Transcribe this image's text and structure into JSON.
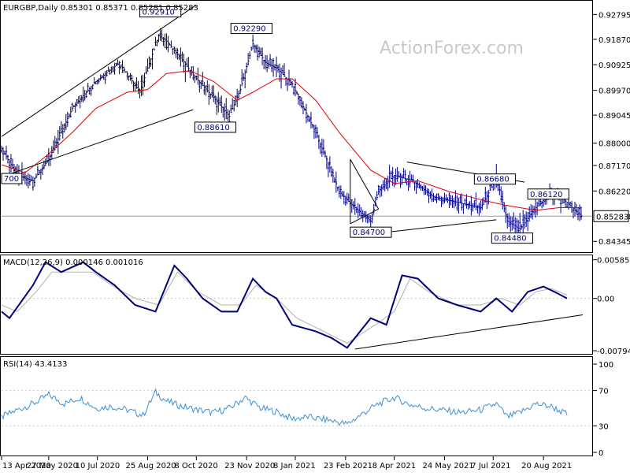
{
  "chart_data": [
    {
      "panel": "price",
      "type": "candlestick",
      "header": "EURGBP,Daily  0.85301 0.85371 0.85281 0.85283",
      "watermark": "ActionForex.com",
      "ylim": [
        0.84,
        0.931
      ],
      "yticks": [
        0.92795,
        0.9187,
        0.90925,
        0.8997,
        0.89045,
        0.88,
        0.8717,
        0.8622,
        0.85283,
        0.84345
      ],
      "ytick_labels": [
        "0.92795",
        "0.91870",
        "0.90925",
        "0.89970",
        "0.89045",
        "0.88000",
        "0.87170",
        "0.86220",
        "0.85283",
        "0.84345"
      ],
      "current_price": 0.85283,
      "current_price_label": "0.85283",
      "x_dates": [
        "13 Apr 2020",
        "27 May 2020",
        "10 Jul 2020",
        "25 Aug 2020",
        "8 Oct 2020",
        "23 Nov 2020",
        "8 Jan 2021",
        "23 Feb 2021",
        "8 Apr 2021",
        "24 May 2021",
        "7 Jul 2021",
        "20 Aug 2021"
      ],
      "x_date_index": [
        0,
        30,
        61,
        93,
        124,
        156,
        187,
        219,
        250,
        282,
        313,
        345
      ],
      "n_bars": 370,
      "close_path": [
        [
          0,
          0.878
        ],
        [
          10,
          0.868
        ],
        [
          20,
          0.866
        ],
        [
          30,
          0.874
        ],
        [
          45,
          0.893
        ],
        [
          60,
          0.903
        ],
        [
          75,
          0.91
        ],
        [
          88,
          0.899
        ],
        [
          93,
          0.908
        ],
        [
          100,
          0.92
        ],
        [
          105,
          0.918
        ],
        [
          115,
          0.911
        ],
        [
          124,
          0.904
        ],
        [
          135,
          0.897
        ],
        [
          145,
          0.89
        ],
        [
          152,
          0.9
        ],
        [
          160,
          0.917
        ],
        [
          168,
          0.91
        ],
        [
          175,
          0.908
        ],
        [
          185,
          0.902
        ],
        [
          200,
          0.884
        ],
        [
          215,
          0.862
        ],
        [
          225,
          0.856
        ],
        [
          235,
          0.851
        ],
        [
          240,
          0.862
        ],
        [
          250,
          0.868
        ],
        [
          262,
          0.866
        ],
        [
          275,
          0.86
        ],
        [
          290,
          0.858
        ],
        [
          305,
          0.856
        ],
        [
          315,
          0.867
        ],
        [
          322,
          0.851
        ],
        [
          330,
          0.848
        ],
        [
          340,
          0.856
        ],
        [
          350,
          0.861
        ],
        [
          358,
          0.859
        ],
        [
          365,
          0.855
        ],
        [
          369,
          0.853
        ]
      ],
      "ma_path": [
        [
          0,
          0.872
        ],
        [
          15,
          0.869
        ],
        [
          30,
          0.876
        ],
        [
          45,
          0.884
        ],
        [
          60,
          0.893
        ],
        [
          80,
          0.899
        ],
        [
          93,
          0.9
        ],
        [
          105,
          0.906
        ],
        [
          120,
          0.907
        ],
        [
          135,
          0.903
        ],
        [
          150,
          0.896
        ],
        [
          160,
          0.899
        ],
        [
          175,
          0.904
        ],
        [
          185,
          0.904
        ],
        [
          200,
          0.896
        ],
        [
          215,
          0.884
        ],
        [
          235,
          0.87
        ],
        [
          250,
          0.865
        ],
        [
          265,
          0.866
        ],
        [
          285,
          0.862
        ],
        [
          305,
          0.859
        ],
        [
          320,
          0.857
        ],
        [
          340,
          0.855
        ],
        [
          355,
          0.856
        ],
        [
          369,
          0.856
        ]
      ],
      "ma_color": "#e00000",
      "candle_color": "#00007a",
      "trendlines": [
        [
          [
            0,
            0.8825
          ],
          [
            124,
            0.9315
          ]
        ],
        [
          [
            5,
            0.8685
          ],
          [
            122,
            0.8925
          ]
        ],
        [
          [
            222,
            0.874
          ],
          [
            240,
            0.8555
          ]
        ],
        [
          [
            222,
            0.874
          ],
          [
            222,
            0.85
          ]
        ],
        [
          [
            222,
            0.85
          ],
          [
            240,
            0.8555
          ]
        ],
        [
          [
            240,
            0.8465
          ],
          [
            315,
            0.8515
          ]
        ],
        [
          [
            258,
            0.873
          ],
          [
            333,
            0.8655
          ]
        ]
      ],
      "annotations": [
        {
          "text": "0.92910",
          "x": 88,
          "y": 0.9291
        },
        {
          "text": "0.92290",
          "x": 146,
          "y": 0.9229
        },
        {
          "text": "0.88610",
          "x": 123,
          "y": 0.8861
        },
        {
          "text": "0.84700",
          "x": 222,
          "y": 0.847
        },
        {
          "text": "0.86680",
          "x": 301,
          "y": 0.8668
        },
        {
          "text": "0.86120",
          "x": 335,
          "y": 0.8612
        },
        {
          "text": "0.84480",
          "x": 312,
          "y": 0.8448
        },
        {
          "text": "700",
          "x": 0,
          "y": 0.867
        }
      ]
    },
    {
      "panel": "macd",
      "type": "line",
      "header": "MACD(12,26,9) 0.000146 0.001016",
      "ylim": [
        -0.0083,
        0.0063
      ],
      "yticks": [
        0.005858,
        0.0,
        -0.007945
      ],
      "ytick_labels": [
        "0.005858",
        "0.00",
        "-0.007945"
      ],
      "zero_label": "0.00",
      "macd_path": [
        [
          0,
          -0.002
        ],
        [
          5,
          -0.003
        ],
        [
          20,
          0.002
        ],
        [
          28,
          0.0055
        ],
        [
          38,
          0.004
        ],
        [
          52,
          0.0055
        ],
        [
          60,
          0.004
        ],
        [
          72,
          0.002
        ],
        [
          85,
          -0.001
        ],
        [
          98,
          -0.002
        ],
        [
          110,
          0.005
        ],
        [
          118,
          0.003
        ],
        [
          128,
          0.0
        ],
        [
          140,
          -0.002
        ],
        [
          150,
          -0.002
        ],
        [
          160,
          0.003
        ],
        [
          168,
          0.001
        ],
        [
          175,
          0.0
        ],
        [
          185,
          -0.004
        ],
        [
          200,
          -0.005
        ],
        [
          210,
          -0.006
        ],
        [
          220,
          -0.0075
        ],
        [
          235,
          -0.003
        ],
        [
          245,
          -0.004
        ],
        [
          255,
          0.0035
        ],
        [
          265,
          0.003
        ],
        [
          278,
          0.0
        ],
        [
          290,
          -0.001
        ],
        [
          305,
          -0.002
        ],
        [
          315,
          0.0
        ],
        [
          325,
          -0.002
        ],
        [
          335,
          0.001
        ],
        [
          345,
          0.0018
        ],
        [
          352,
          0.001
        ],
        [
          360,
          0.0
        ]
      ],
      "signal_path": [
        [
          0,
          -0.001
        ],
        [
          10,
          -0.002
        ],
        [
          22,
          0.001
        ],
        [
          32,
          0.004
        ],
        [
          45,
          0.004
        ],
        [
          58,
          0.004
        ],
        [
          70,
          0.002
        ],
        [
          85,
          0.0
        ],
        [
          100,
          -0.001
        ],
        [
          112,
          0.004
        ],
        [
          125,
          0.001
        ],
        [
          140,
          -0.001
        ],
        [
          152,
          -0.001
        ],
        [
          162,
          0.002
        ],
        [
          175,
          0.0
        ],
        [
          188,
          -0.003
        ],
        [
          205,
          -0.005
        ],
        [
          220,
          -0.0068
        ],
        [
          238,
          -0.004
        ],
        [
          250,
          -0.002
        ],
        [
          260,
          0.003
        ],
        [
          272,
          0.001
        ],
        [
          290,
          -0.001
        ],
        [
          305,
          -0.001
        ],
        [
          318,
          0.0
        ],
        [
          330,
          -0.001
        ],
        [
          340,
          0.001
        ],
        [
          350,
          0.0015
        ],
        [
          360,
          0.0005
        ]
      ],
      "macd_color": "#00007a",
      "signal_color": "#b0b0b0",
      "trendline": [
        [
          225,
          -0.0077
        ],
        [
          370,
          -0.0025
        ]
      ]
    },
    {
      "panel": "rsi",
      "type": "line",
      "header": "RSI(14) 43.4133",
      "ylim": [
        0,
        100
      ],
      "yticks": [
        100,
        70,
        30,
        0
      ],
      "ytick_labels": [
        "100",
        "70",
        "30",
        "0"
      ],
      "rsi_path": [
        [
          0,
          40
        ],
        [
          10,
          48
        ],
        [
          20,
          55
        ],
        [
          30,
          65
        ],
        [
          40,
          55
        ],
        [
          50,
          62
        ],
        [
          60,
          50
        ],
        [
          70,
          52
        ],
        [
          80,
          48
        ],
        [
          90,
          42
        ],
        [
          98,
          68
        ],
        [
          105,
          58
        ],
        [
          115,
          52
        ],
        [
          125,
          48
        ],
        [
          135,
          45
        ],
        [
          145,
          50
        ],
        [
          155,
          62
        ],
        [
          165,
          50
        ],
        [
          175,
          46
        ],
        [
          185,
          38
        ],
        [
          195,
          40
        ],
        [
          210,
          36
        ],
        [
          220,
          32
        ],
        [
          230,
          44
        ],
        [
          240,
          55
        ],
        [
          250,
          62
        ],
        [
          260,
          54
        ],
        [
          270,
          50
        ],
        [
          280,
          48
        ],
        [
          292,
          45
        ],
        [
          305,
          48
        ],
        [
          315,
          55
        ],
        [
          322,
          40
        ],
        [
          330,
          45
        ],
        [
          340,
          55
        ],
        [
          350,
          52
        ],
        [
          360,
          43
        ]
      ],
      "rsi_color": "#3a8fd8"
    }
  ]
}
